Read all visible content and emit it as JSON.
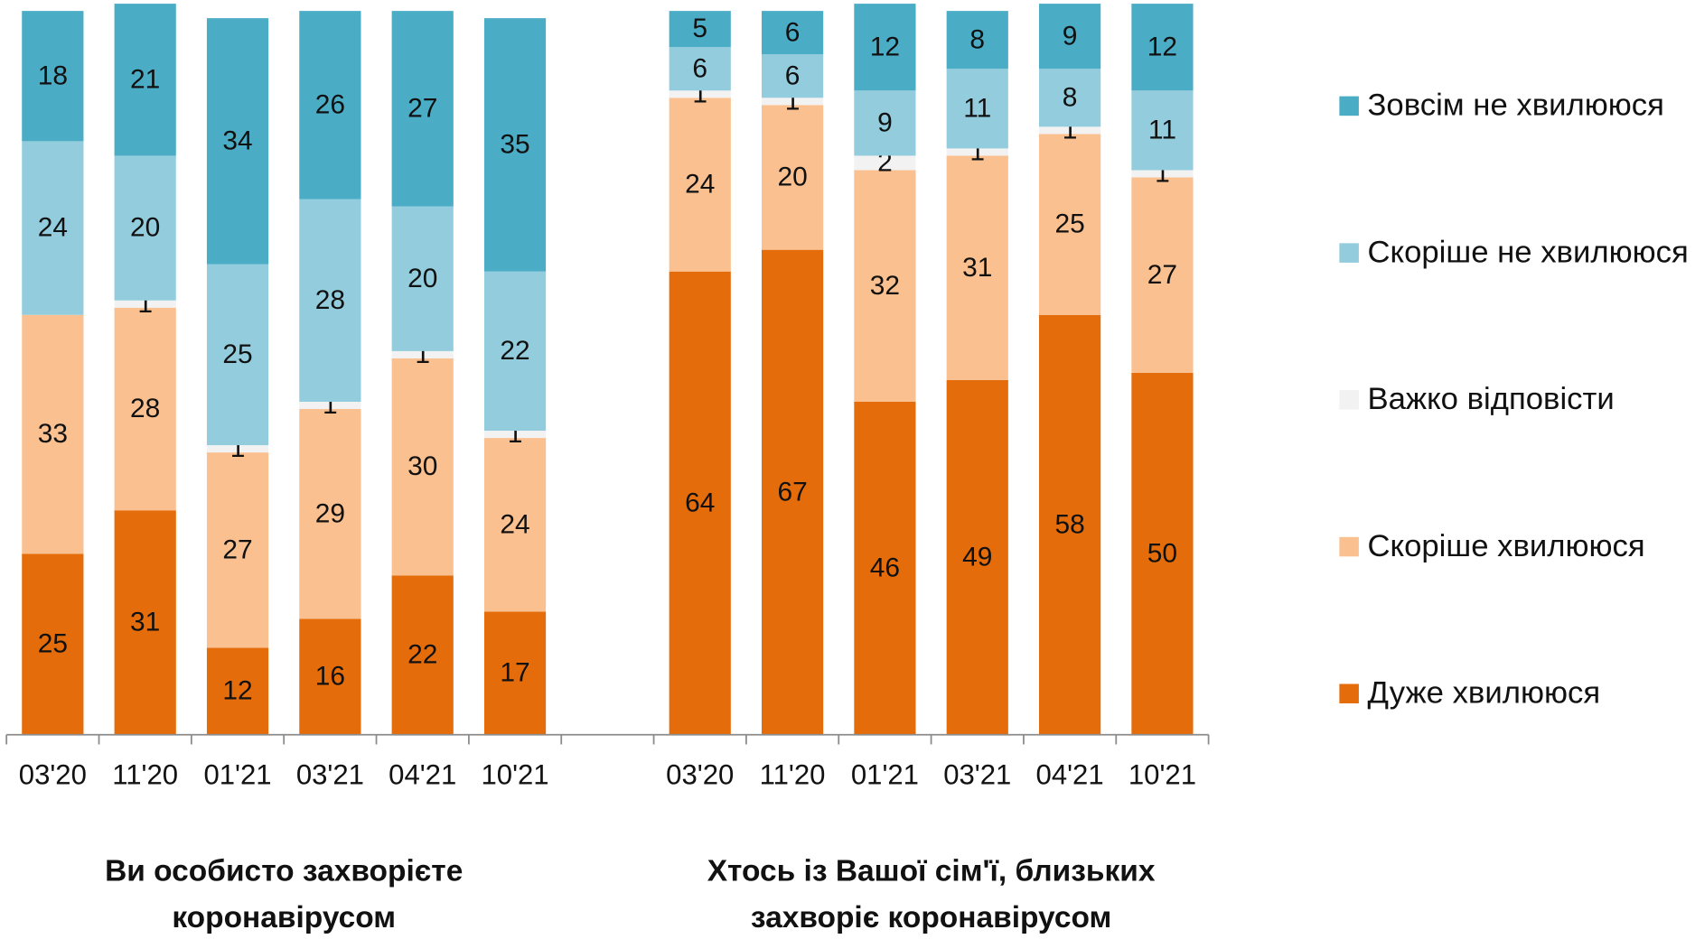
{
  "chart_data": {
    "type": "stacked_bar",
    "categories": [
      "03'20",
      "11'20",
      "01'21",
      "03'21",
      "04'21",
      "10'21",
      null,
      "03'20",
      "11'20",
      "01'21",
      "03'21",
      "04'21",
      "10'21"
    ],
    "series": [
      {
        "name": "Дуже хвилююся",
        "color": "#e46c0a",
        "values": [
          25,
          31,
          12,
          16,
          22,
          17,
          null,
          64,
          67,
          46,
          49,
          58,
          50
        ]
      },
      {
        "name": "Скоріше хвилююся",
        "color": "#fac090",
        "values": [
          33,
          28,
          27,
          29,
          30,
          24,
          null,
          24,
          20,
          32,
          31,
          25,
          27
        ]
      },
      {
        "name": "Важко відповісти",
        "color": "#f2f2f2",
        "values": [
          null,
          1,
          1,
          1,
          1,
          1,
          null,
          1,
          1,
          2,
          1,
          1,
          1
        ]
      },
      {
        "name": "Скоріше не хвилююся",
        "color": "#93cddd",
        "values": [
          24,
          20,
          25,
          28,
          20,
          22,
          null,
          6,
          6,
          9,
          11,
          8,
          11
        ]
      },
      {
        "name": "Зовсім не хвилююся",
        "color": "#4bacc6",
        "values": [
          18,
          21,
          34,
          26,
          27,
          35,
          null,
          5,
          6,
          12,
          8,
          9,
          12
        ]
      }
    ],
    "ylim": [
      0,
      100
    ],
    "legend": "right",
    "group_labels": [
      {
        "lines": [
          "Ви особисто захворієте",
          "коронавірусом"
        ]
      },
      {
        "lines": [
          "Хтось із Вашої сім'ї, близьких",
          "захворіє коронавірусом"
        ]
      }
    ]
  }
}
